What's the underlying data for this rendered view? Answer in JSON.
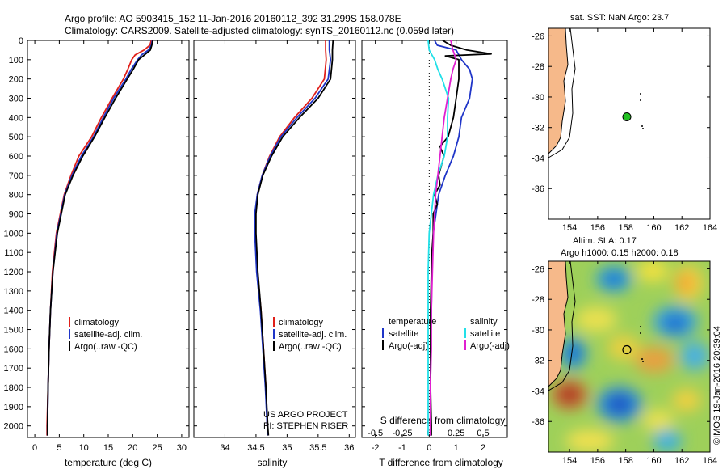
{
  "header": {
    "title_line1": "Argo profile: AO 5903415_152 11-Jan-2016 20160112_392 31.299S 158.078E",
    "title_line2": "Climatology: CARS2009. Satellite-adjusted climatology: synTS_20160112.nc (0.059d later)"
  },
  "colors": {
    "climatology": "#e0201a",
    "satellite": "#1f35c8",
    "argo": "#000000",
    "sat_salinity": "#22e0e8",
    "argo_salinity": "#e020d0",
    "land": "#f6b98a"
  },
  "depth_axis": {
    "ticks": [
      0,
      100,
      200,
      300,
      400,
      500,
      600,
      700,
      800,
      900,
      1000,
      1100,
      1200,
      1300,
      1400,
      1500,
      1600,
      1700,
      1800,
      1900,
      2000
    ],
    "range": [
      0,
      2060
    ]
  },
  "chart_data": [
    {
      "type": "line",
      "id": "temperature",
      "xlabel": "temperature (deg C)",
      "xlim": [
        -1.5,
        31.5
      ],
      "xticks": [
        0,
        5,
        10,
        15,
        20,
        25,
        30
      ],
      "ylim": [
        0,
        2060
      ],
      "legend": [
        "climatology",
        "satellite-adj. clim.",
        "Argo(..raw -QC)"
      ],
      "series": [
        {
          "name": "climatology",
          "color": "#e0201a",
          "depth": [
            0,
            25,
            50,
            75,
            100,
            150,
            200,
            300,
            400,
            500,
            600,
            700,
            800,
            1000,
            1200,
            1400,
            1600,
            1800,
            2000,
            2050
          ],
          "values": [
            23.8,
            23.5,
            22.3,
            20.5,
            19.8,
            19.0,
            18.1,
            15.8,
            13.6,
            11.6,
            9.0,
            7.4,
            6.0,
            4.4,
            3.6,
            3.2,
            2.9,
            2.7,
            2.5,
            2.5
          ]
        },
        {
          "name": "satellite-adj. clim.",
          "color": "#1f35c8",
          "depth": [
            0,
            25,
            50,
            75,
            100,
            150,
            200,
            300,
            400,
            500,
            600,
            700,
            800,
            1000,
            1200,
            1400,
            1600,
            1800,
            2000,
            2050
          ],
          "values": [
            24.0,
            23.8,
            23.2,
            21.8,
            21.0,
            19.7,
            18.6,
            16.1,
            14.0,
            12.0,
            9.5,
            7.6,
            6.1,
            4.5,
            3.7,
            3.2,
            2.9,
            2.7,
            2.6,
            2.6
          ]
        },
        {
          "name": "Argo(..raw -QC)",
          "color": "#000000",
          "depth": [
            0,
            25,
            50,
            75,
            100,
            150,
            200,
            300,
            400,
            500,
            600,
            700,
            800,
            1000,
            1200,
            1400,
            1600,
            1800,
            2000,
            2050
          ],
          "values": [
            24.1,
            23.9,
            23.6,
            22.4,
            21.2,
            20.1,
            18.9,
            16.5,
            14.3,
            12.2,
            9.8,
            7.8,
            6.2,
            4.6,
            3.7,
            3.2,
            2.9,
            2.7,
            2.6,
            2.6
          ]
        }
      ]
    },
    {
      "type": "line",
      "id": "salinity",
      "xlabel": "salinity",
      "xlim": [
        33.5,
        36.1
      ],
      "xticks": [
        34,
        34.5,
        35,
        35.5,
        36
      ],
      "ylim": [
        0,
        2060
      ],
      "legend": [
        "climatology",
        "satellite-adj. clim.",
        "Argo(..raw -QC)"
      ],
      "annotation": [
        "US ARGO PROJECT",
        "PI: STEPHEN RISER"
      ],
      "series": [
        {
          "name": "climatology",
          "color": "#e0201a",
          "depth": [
            0,
            50,
            100,
            200,
            300,
            400,
            500,
            600,
            700,
            800,
            900,
            1000,
            1200,
            1400,
            1600,
            1800,
            2000,
            2050
          ],
          "values": [
            35.62,
            35.62,
            35.63,
            35.6,
            35.4,
            35.12,
            34.88,
            34.72,
            34.6,
            34.52,
            34.49,
            34.49,
            34.52,
            34.58,
            34.62,
            34.66,
            34.68,
            34.69
          ]
        },
        {
          "name": "satellite-adj. clim.",
          "color": "#1f35c8",
          "depth": [
            0,
            50,
            100,
            200,
            300,
            400,
            500,
            600,
            700,
            800,
            900,
            1000,
            1200,
            1400,
            1600,
            1800,
            2000,
            2050
          ],
          "values": [
            35.68,
            35.68,
            35.7,
            35.66,
            35.45,
            35.16,
            34.9,
            34.73,
            34.6,
            34.52,
            34.48,
            34.48,
            34.51,
            34.57,
            34.61,
            34.65,
            34.68,
            34.69
          ]
        },
        {
          "name": "Argo(..raw -QC)",
          "color": "#000000",
          "depth": [
            0,
            50,
            100,
            200,
            300,
            400,
            500,
            600,
            700,
            800,
            900,
            1000,
            1200,
            1400,
            1600,
            1800,
            2000,
            2050
          ],
          "values": [
            35.74,
            35.73,
            35.73,
            35.7,
            35.5,
            35.2,
            34.93,
            34.75,
            34.61,
            34.53,
            34.5,
            34.5,
            34.53,
            34.58,
            34.62,
            34.66,
            34.69,
            34.7
          ]
        }
      ]
    },
    {
      "type": "line",
      "id": "differences",
      "xlabel": "T difference from climatology",
      "xlabel2": "S difference from climatology",
      "xlim": [
        -2.5,
        2.9
      ],
      "xticks": [
        -2,
        -1,
        0,
        1,
        2
      ],
      "xticks2": [
        -0.5,
        -0.25,
        0,
        0.25,
        0.5
      ],
      "xticklabels2": [
        "-0.5",
        "-0.25",
        "0",
        "0.25",
        "0.5"
      ],
      "ylim": [
        0,
        2060
      ],
      "legend_temperature": [
        "temperature",
        "satellite",
        "Argo(-adj)"
      ],
      "legend_salinity": [
        "salinity",
        "satellite",
        "Argo(-adj)"
      ],
      "series": [
        {
          "name": "satellite",
          "quantity": "temperature",
          "color": "#1f35c8",
          "depth": [
            0,
            25,
            50,
            100,
            150,
            200,
            300,
            400,
            500,
            600,
            700,
            800,
            900,
            1000,
            1100,
            1200,
            1400,
            1600,
            1800,
            2000,
            2050
          ],
          "values": [
            0.2,
            0.3,
            1.0,
            1.2,
            1.5,
            1.6,
            1.5,
            1.2,
            1.1,
            0.9,
            0.6,
            0.35,
            0.25,
            0.15,
            0.12,
            0.1,
            0.08,
            0.06,
            0.05,
            0.05,
            0.05
          ]
        },
        {
          "name": "Argo(-adj)",
          "quantity": "temperature",
          "color": "#000000",
          "depth": [
            0,
            25,
            50,
            70,
            80,
            100,
            150,
            200,
            300,
            400,
            500,
            550,
            600,
            650,
            700,
            750,
            800,
            850,
            900,
            1000,
            1100,
            1200,
            1400,
            1600,
            1800,
            2000,
            2050
          ],
          "values": [
            0.5,
            0.8,
            1.4,
            2.3,
            0.6,
            1.1,
            1.1,
            1.1,
            1.0,
            0.9,
            0.7,
            0.4,
            0.55,
            0.45,
            0.35,
            0.4,
            0.2,
            0.3,
            0.15,
            0.15,
            0.1,
            0.08,
            0.05,
            0.05,
            0.05,
            0.08,
            0.08
          ]
        },
        {
          "name": "satellite",
          "quantity": "salinity",
          "color": "#22e0e8",
          "depth": [
            0,
            50,
            100,
            150,
            200,
            300,
            400,
            500,
            600,
            700,
            800,
            900,
            1000,
            1200,
            1400,
            1600,
            1800,
            2000,
            2050
          ],
          "values": [
            -0.01,
            0.0,
            0.05,
            0.08,
            0.12,
            0.18,
            0.17,
            0.17,
            0.14,
            0.08,
            0.04,
            0.02,
            0.0,
            -0.01,
            -0.01,
            -0.01,
            -0.01,
            -0.01,
            -0.01
          ]
        },
        {
          "name": "Argo(-adj)",
          "quantity": "salinity",
          "color": "#e020d0",
          "depth": [
            0,
            50,
            100,
            150,
            200,
            300,
            400,
            500,
            600,
            700,
            800,
            900,
            1000,
            1200,
            1400,
            1600,
            1800,
            2000,
            2050
          ],
          "values": [
            0.2,
            0.22,
            0.25,
            0.22,
            0.2,
            0.17,
            0.14,
            0.12,
            0.1,
            0.08,
            0.06,
            0.05,
            0.04,
            0.03,
            0.02,
            0.02,
            0.01,
            0.01,
            0.01
          ]
        }
      ]
    },
    {
      "type": "scatter",
      "id": "sst-map",
      "title": "sat. SST: NaN Argo: 23.7",
      "xlim": [
        152.5,
        164
      ],
      "ylim": [
        -38,
        -25.5
      ],
      "xticks": [
        154,
        156,
        158,
        160,
        162,
        164
      ],
      "yticks": [
        -26,
        -28,
        -30,
        -32,
        -34,
        -36
      ],
      "argo_position": [
        158.078,
        -31.299
      ],
      "argo_marker_color": "#22c022"
    },
    {
      "type": "heatmap",
      "id": "sla-map",
      "title_line1": "Altim. SLA: 0.17",
      "title_line2": "Argo h1000: 0.15 h2000: 0.18",
      "xlim": [
        152.5,
        164
      ],
      "ylim": [
        -38,
        -25.5
      ],
      "xticks": [
        154,
        156,
        158,
        160,
        162,
        164
      ],
      "yticks": [
        -26,
        -28,
        -30,
        -32,
        -34,
        -36
      ],
      "argo_position": [
        158.078,
        -31.299
      ]
    }
  ],
  "footer": {
    "credit": "©IMOS 19-Jan-2016 20:39:04"
  }
}
